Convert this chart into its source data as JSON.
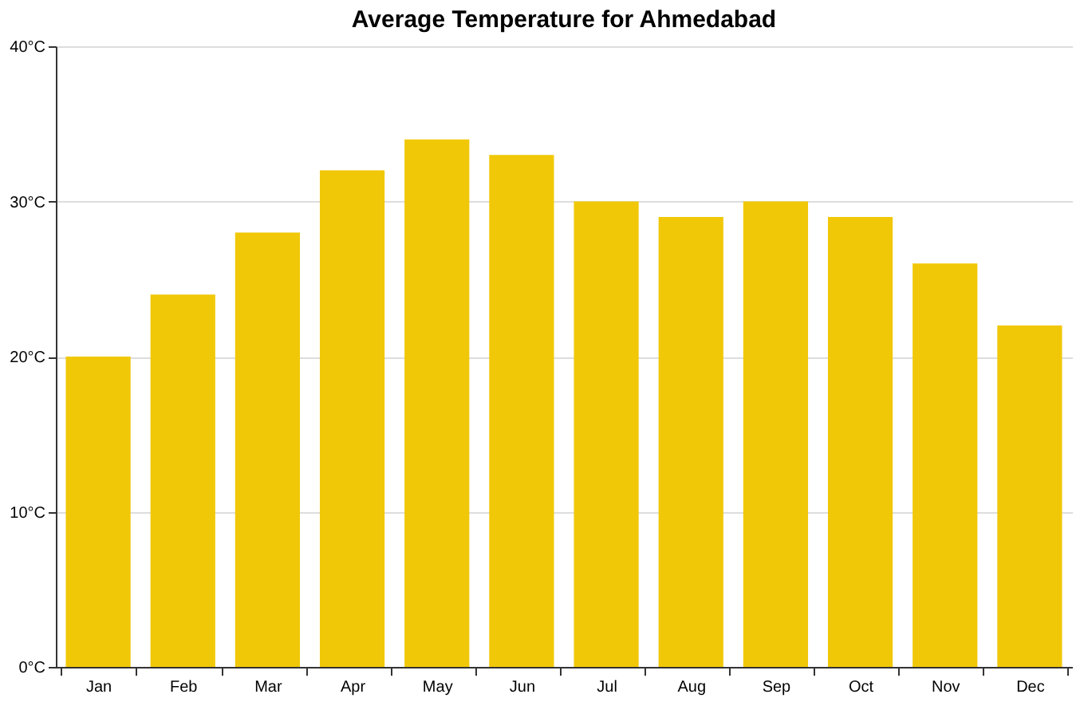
{
  "chart_data": {
    "type": "bar",
    "title": "Average Temperature for Ahmedabad",
    "categories": [
      "Jan",
      "Feb",
      "Mar",
      "Apr",
      "May",
      "Jun",
      "Jul",
      "Aug",
      "Sep",
      "Oct",
      "Nov",
      "Dec"
    ],
    "values": [
      20,
      24,
      28,
      32,
      34,
      33,
      30,
      29,
      30,
      29,
      26,
      22
    ],
    "color": "#f0c808",
    "ylim": [
      0,
      40
    ],
    "yticks": [
      {
        "value": 0,
        "label": "0°C"
      },
      {
        "value": 10,
        "label": "10°C"
      },
      {
        "value": 20,
        "label": "20°C"
      },
      {
        "value": 30,
        "label": "30°C"
      },
      {
        "value": 40,
        "label": "40°C"
      }
    ],
    "grid": "y"
  }
}
